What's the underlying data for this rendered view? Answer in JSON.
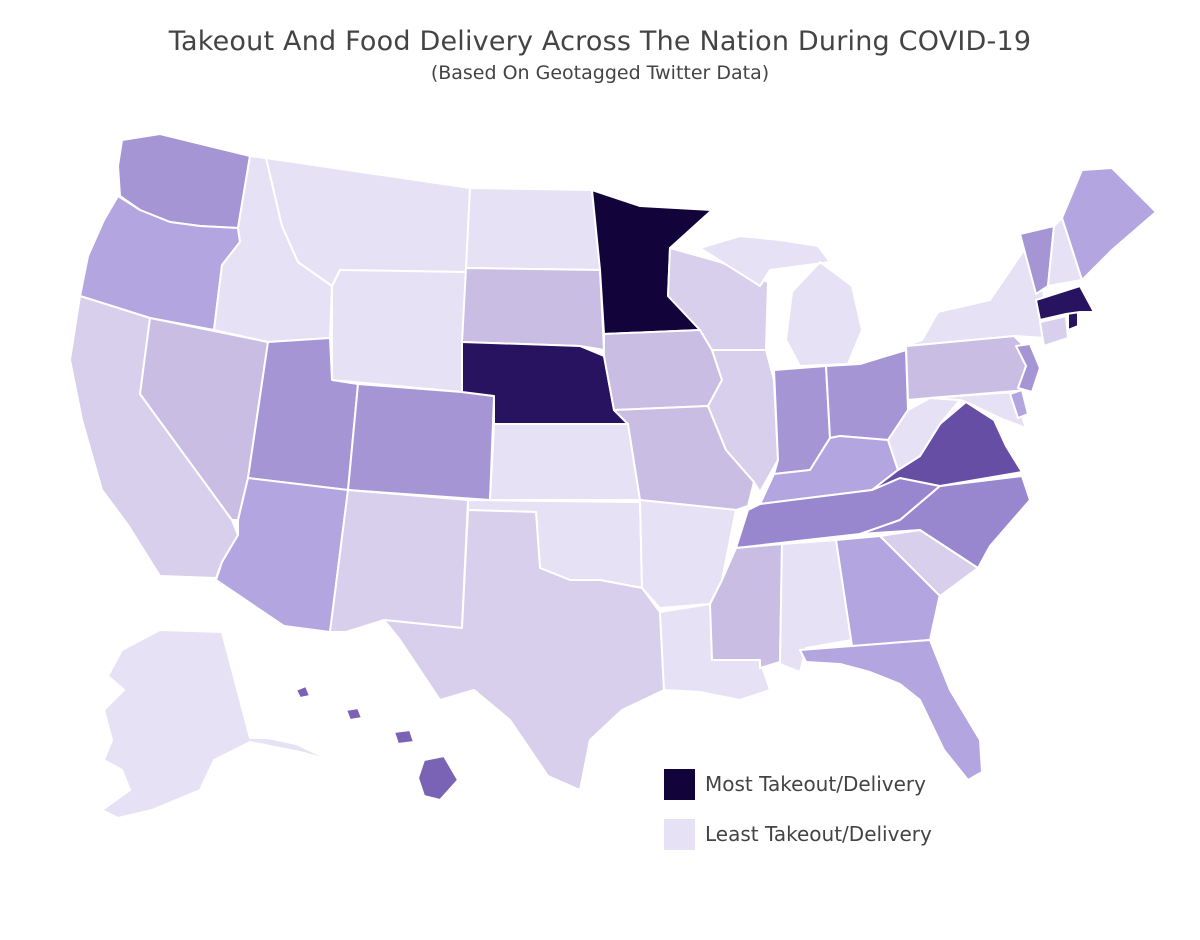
{
  "title": "Takeout And Food Delivery Across The Nation During COVID-19",
  "subtitle": "(Based On Geotagged Twitter Data)",
  "colors": {
    "level_0": "#e6e1f4",
    "level_1": "#d7cfeb",
    "level_2": "#c9bde4",
    "level_3": "#b3a5e0",
    "level_4": "#a595d4",
    "level_5": "#9886ce",
    "level_6": "#7a62b5",
    "level_7": "#654ea3",
    "level_8": "#27135f",
    "level_9": "#12033a"
  },
  "legend": {
    "most": {
      "label": "Most Takeout/Delivery",
      "color": "#12033a"
    },
    "least": {
      "label": "Least Takeout/Delivery",
      "color": "#e6e1f4"
    }
  },
  "states": [
    {
      "code": "WA",
      "level": 4
    },
    {
      "code": "OR",
      "level": 3
    },
    {
      "code": "CA",
      "level": 1
    },
    {
      "code": "NV",
      "level": 2
    },
    {
      "code": "ID",
      "level": 0
    },
    {
      "code": "MT",
      "level": 0
    },
    {
      "code": "WY",
      "level": 0
    },
    {
      "code": "UT",
      "level": 4
    },
    {
      "code": "AZ",
      "level": 3
    },
    {
      "code": "CO",
      "level": 4
    },
    {
      "code": "NM",
      "level": 1
    },
    {
      "code": "ND",
      "level": 0
    },
    {
      "code": "SD",
      "level": 2
    },
    {
      "code": "NE",
      "level": 8
    },
    {
      "code": "KS",
      "level": 0
    },
    {
      "code": "OK",
      "level": 0
    },
    {
      "code": "TX",
      "level": 1
    },
    {
      "code": "MN",
      "level": 9
    },
    {
      "code": "IA",
      "level": 2
    },
    {
      "code": "MO",
      "level": 2
    },
    {
      "code": "AR",
      "level": 0
    },
    {
      "code": "LA",
      "level": 0
    },
    {
      "code": "WI",
      "level": 1
    },
    {
      "code": "IL",
      "level": 1
    },
    {
      "code": "MI",
      "level": 0
    },
    {
      "code": "IN",
      "level": 4
    },
    {
      "code": "OH",
      "level": 4
    },
    {
      "code": "KY",
      "level": 3
    },
    {
      "code": "TN",
      "level": 5
    },
    {
      "code": "MS",
      "level": 2
    },
    {
      "code": "AL",
      "level": 0
    },
    {
      "code": "GA",
      "level": 3
    },
    {
      "code": "FL",
      "level": 3
    },
    {
      "code": "SC",
      "level": 1
    },
    {
      "code": "NC",
      "level": 5
    },
    {
      "code": "VA",
      "level": 7
    },
    {
      "code": "WV",
      "level": 0
    },
    {
      "code": "PA",
      "level": 2
    },
    {
      "code": "NY",
      "level": 0
    },
    {
      "code": "NJ",
      "level": 4
    },
    {
      "code": "DE",
      "level": 3
    },
    {
      "code": "MD",
      "level": 0
    },
    {
      "code": "CT",
      "level": 1
    },
    {
      "code": "RI",
      "level": 8
    },
    {
      "code": "MA",
      "level": 8
    },
    {
      "code": "VT",
      "level": 4
    },
    {
      "code": "NH",
      "level": 0
    },
    {
      "code": "ME",
      "level": 3
    },
    {
      "code": "AK",
      "level": 0
    },
    {
      "code": "HI",
      "level": 6
    }
  ]
}
